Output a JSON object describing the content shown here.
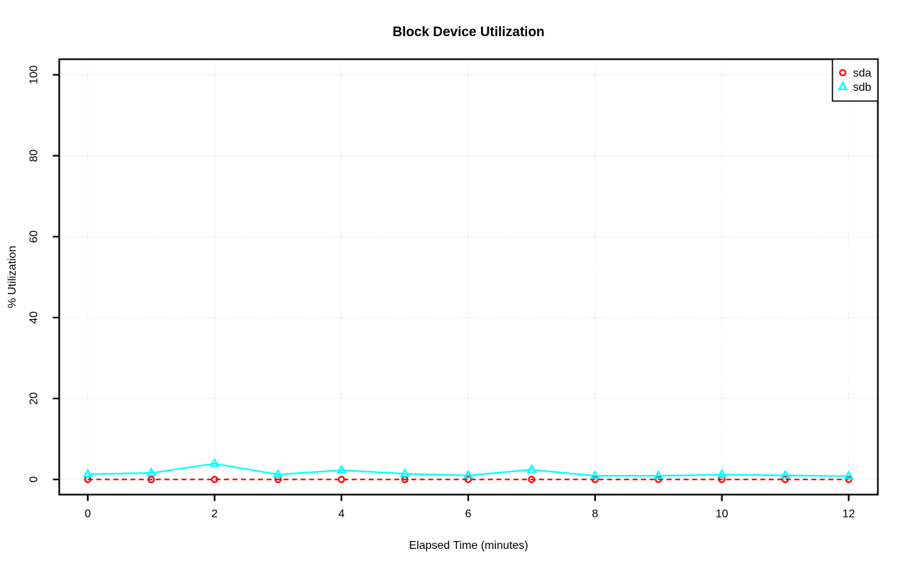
{
  "page": {
    "background": "#FFFFFF"
  },
  "chart_data": {
    "type": "line",
    "title": "Block Device Utilization",
    "xlabel": "Elapsed Time (minutes)",
    "ylabel": "% Utilization",
    "x": [
      0,
      1,
      2,
      3,
      4,
      5,
      6,
      7,
      8,
      9,
      10,
      11,
      12
    ],
    "series": [
      {
        "name": "sda",
        "color": "#FF0000",
        "marker": "circle",
        "line": "dashed",
        "values": [
          0,
          0,
          0,
          0,
          0,
          0,
          0,
          0,
          0,
          0,
          0,
          0,
          0
        ]
      },
      {
        "name": "sdb",
        "color": "#00FFFF",
        "marker": "triangle",
        "line": "solid",
        "values": [
          1.3,
          1.6,
          3.9,
          1.2,
          2.3,
          1.4,
          1.0,
          2.4,
          0.9,
          0.9,
          1.2,
          1.0,
          0.8
        ]
      }
    ],
    "xticks": [
      0,
      2,
      4,
      6,
      8,
      10,
      12
    ],
    "yticks": [
      0,
      20,
      40,
      60,
      80,
      100
    ],
    "xlim": [
      0,
      12
    ],
    "ylim": [
      0,
      100
    ],
    "grid": true,
    "grid_style": "dotted",
    "grid_color": "#D3D3D3",
    "axis_color": "#000000",
    "background_color": "#FFFFFF",
    "legend": {
      "position": "top-right",
      "entries": [
        "sda",
        "sdb"
      ]
    }
  }
}
